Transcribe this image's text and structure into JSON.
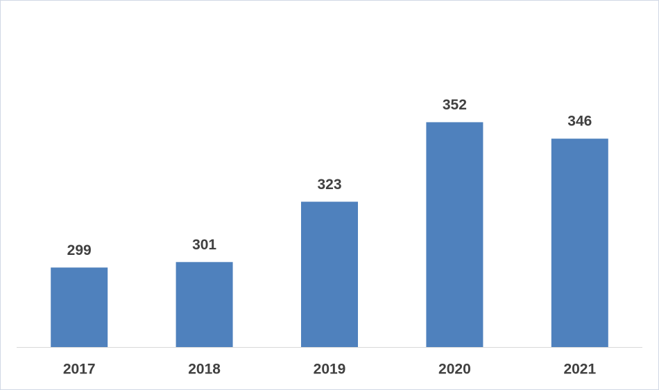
{
  "chart_data": {
    "type": "bar",
    "categories": [
      "2017",
      "2018",
      "2019",
      "2020",
      "2021"
    ],
    "values": [
      299,
      301,
      323,
      352,
      346
    ],
    "color": "#4f81bd",
    "ylim": [
      270,
      390
    ]
  }
}
